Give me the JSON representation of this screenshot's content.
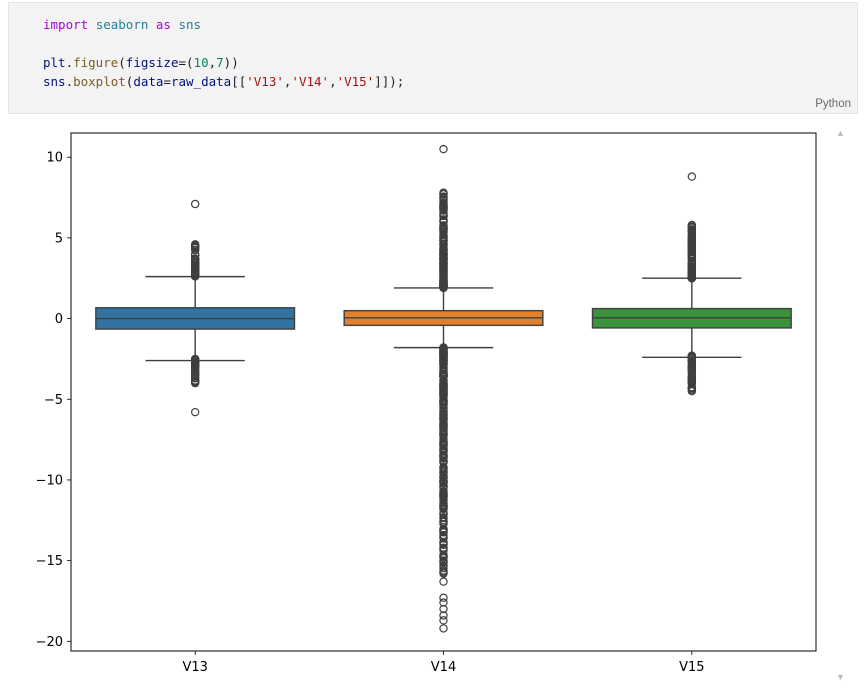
{
  "code_cell": {
    "lines": [
      [
        [
          "kw",
          "import"
        ],
        [
          "pun",
          " "
        ],
        [
          "mod",
          "seaborn"
        ],
        [
          "pun",
          " "
        ],
        [
          "kw",
          "as"
        ],
        [
          "pun",
          " "
        ],
        [
          "mod",
          "sns"
        ]
      ],
      [],
      [
        [
          "var",
          "plt"
        ],
        [
          "pun",
          "."
        ],
        [
          "fn",
          "figure"
        ],
        [
          "pun",
          "("
        ],
        [
          "var",
          "figsize"
        ],
        [
          "pun",
          "=("
        ],
        [
          "num",
          "10"
        ],
        [
          "pun",
          ","
        ],
        [
          "num",
          "7"
        ],
        [
          "pun",
          "))"
        ]
      ],
      [
        [
          "var",
          "sns"
        ],
        [
          "pun",
          "."
        ],
        [
          "fn",
          "boxplot"
        ],
        [
          "pun",
          "("
        ],
        [
          "var",
          "data"
        ],
        [
          "pun",
          "="
        ],
        [
          "var",
          "raw_data"
        ],
        [
          "pun",
          "[["
        ],
        [
          "str",
          "'V13'"
        ],
        [
          "pun",
          ","
        ],
        [
          "str",
          "'V14'"
        ],
        [
          "pun",
          ","
        ],
        [
          "str",
          "'V15'"
        ],
        [
          "pun",
          "]]);"
        ]
      ]
    ],
    "language": "Python"
  },
  "scrollbar": {
    "up_arrow": "▲",
    "down_arrow": "▼"
  },
  "chart_data": {
    "type": "box",
    "title": "",
    "xlabel": "",
    "ylabel": "",
    "categories": [
      "V13",
      "V14",
      "V15"
    ],
    "ylim": [
      -20.6,
      11.5
    ],
    "yticks": [
      10,
      5,
      0,
      -5,
      -10,
      -15,
      -20
    ],
    "ytick_labels": [
      "10",
      "5",
      "0",
      "−5",
      "−10",
      "−15",
      "−20"
    ],
    "grid": false,
    "boxes": [
      {
        "name": "V13",
        "color": "#3274a1",
        "q1": -0.65,
        "median": 0.0,
        "q3": 0.67,
        "whisker_low": -2.6,
        "whisker_high": 2.6,
        "outliers_high_range": [
          2.6,
          4.6
        ],
        "outliers_low_range": [
          -4.0,
          -2.5
        ],
        "outlier_points": [
          7.1,
          -5.8
        ]
      },
      {
        "name": "V14",
        "color": "#e1812c",
        "q1": -0.42,
        "median": 0.05,
        "q3": 0.49,
        "whisker_low": -1.8,
        "whisker_high": 1.9,
        "outliers_high_range": [
          1.9,
          7.8
        ],
        "outliers_low_range": [
          -15.8,
          -1.8
        ],
        "outlier_points": [
          10.5,
          -16.3,
          -17.3,
          -17.6,
          -18.0,
          -18.4,
          -18.7,
          -19.2
        ]
      },
      {
        "name": "V15",
        "color": "#3a923a",
        "q1": -0.58,
        "median": 0.05,
        "q3": 0.62,
        "whisker_low": -2.4,
        "whisker_high": 2.5,
        "outliers_high_range": [
          2.5,
          5.8
        ],
        "outliers_low_range": [
          -4.5,
          -2.3
        ],
        "outlier_points": [
          8.8
        ]
      }
    ]
  }
}
